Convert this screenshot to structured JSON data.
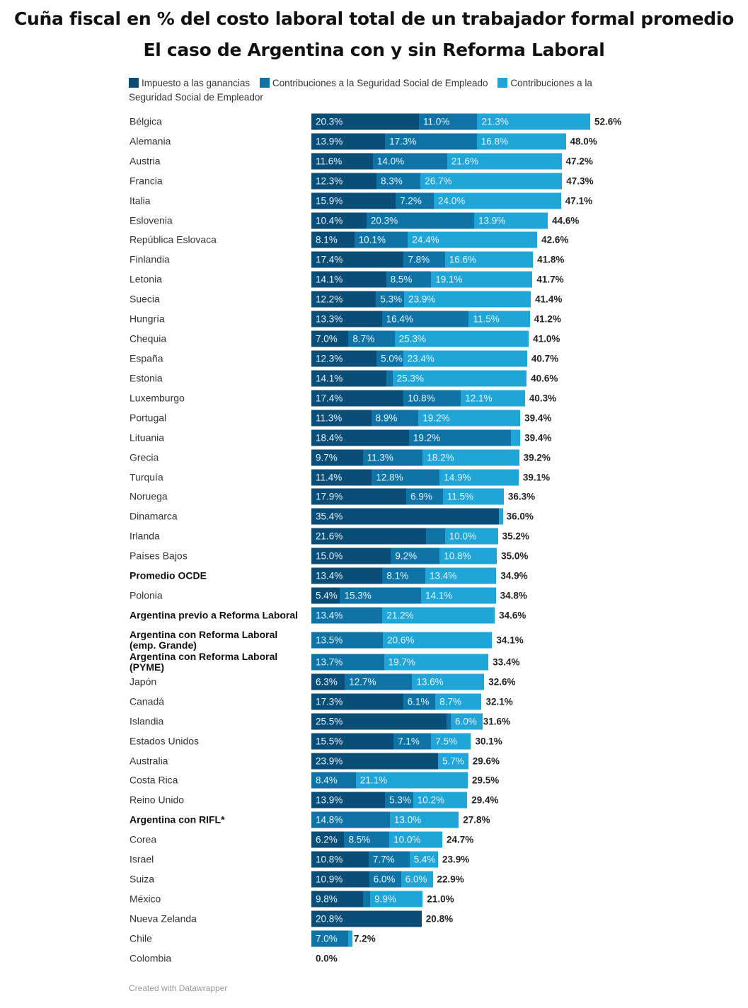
{
  "chart_data": {
    "type": "bar",
    "orientation": "horizontal",
    "stacked": true,
    "title": "Cuña fiscal en % del costo laboral total de un trabajador formal promedio",
    "subtitle": "El caso de Argentina con y sin Reforma Laboral",
    "legend_position": "top",
    "grid": false,
    "xlim": [
      0,
      52.6
    ],
    "series": [
      {
        "name": "Impuesto a las ganancias",
        "color": "#0a4d76"
      },
      {
        "name": "Contribuciones a la Seguridad Social de Empleado",
        "color": "#0f73a6"
      },
      {
        "name": "Contribuciones a la Seguridad Social de Empleador",
        "color": "#1fa5d8"
      }
    ],
    "rows": [
      {
        "label": "Bélgica",
        "values": [
          20.3,
          11.0,
          21.3
        ],
        "total": "52.6%"
      },
      {
        "label": "Alemania",
        "values": [
          13.9,
          17.3,
          16.8
        ],
        "total": "48.0%"
      },
      {
        "label": "Austria",
        "values": [
          11.6,
          14.0,
          21.6
        ],
        "total": "47.2%"
      },
      {
        "label": "Francia",
        "values": [
          12.3,
          8.3,
          26.7
        ],
        "total": "47.3%"
      },
      {
        "label": "Italia",
        "values": [
          15.9,
          7.2,
          24.0
        ],
        "total": "47.1%"
      },
      {
        "label": "Eslovenia",
        "values": [
          10.4,
          20.3,
          13.9
        ],
        "total": "44.6%"
      },
      {
        "label": "República Eslovaca",
        "values": [
          8.1,
          10.1,
          24.4
        ],
        "total": "42.6%"
      },
      {
        "label": "Finlandia",
        "values": [
          17.4,
          7.8,
          16.6
        ],
        "total": "41.8%"
      },
      {
        "label": "Letonia",
        "values": [
          14.1,
          8.5,
          19.1
        ],
        "total": "41.7%"
      },
      {
        "label": "Suecia",
        "values": [
          12.2,
          5.3,
          23.9
        ],
        "total": "41.4%"
      },
      {
        "label": "Hungría",
        "values": [
          13.3,
          16.4,
          11.5
        ],
        "total": "41.2%"
      },
      {
        "label": "Chequia",
        "values": [
          7.0,
          8.7,
          25.3
        ],
        "total": "41.0%"
      },
      {
        "label": "España",
        "values": [
          12.3,
          5.0,
          23.4
        ],
        "total": "40.7%"
      },
      {
        "label": "Estonia",
        "values": [
          14.1,
          1.2,
          25.3
        ],
        "total": "40.6%"
      },
      {
        "label": "Luxemburgo",
        "values": [
          17.4,
          10.8,
          12.1
        ],
        "total": "40.3%"
      },
      {
        "label": "Portugal",
        "values": [
          11.3,
          8.9,
          19.2
        ],
        "total": "39.4%"
      },
      {
        "label": "Lituania",
        "values": [
          18.4,
          19.2,
          1.8
        ],
        "total": "39.4%"
      },
      {
        "label": "Grecia",
        "values": [
          9.7,
          11.3,
          18.2
        ],
        "total": "39.2%"
      },
      {
        "label": "Turquía",
        "values": [
          11.4,
          12.8,
          14.9
        ],
        "total": "39.1%"
      },
      {
        "label": "Noruega",
        "values": [
          17.9,
          6.9,
          11.5
        ],
        "total": "36.3%"
      },
      {
        "label": "Dinamarca",
        "values": [
          35.4,
          0,
          0.6
        ],
        "total": "36.0%"
      },
      {
        "label": "Irlanda",
        "values": [
          21.6,
          3.6,
          10.0
        ],
        "total": "35.2%"
      },
      {
        "label": "Países Bajos",
        "values": [
          15.0,
          9.2,
          10.8
        ],
        "total": "35.0%"
      },
      {
        "label": "Promedio OCDE",
        "values": [
          13.4,
          8.1,
          13.4
        ],
        "total": "34.9%",
        "bold": true
      },
      {
        "label": "Polonia",
        "values": [
          5.4,
          15.3,
          14.1
        ],
        "total": "34.8%"
      },
      {
        "label": "Argentina previo a Reforma Laboral",
        "values": [
          0,
          13.4,
          21.2
        ],
        "total": "34.6%",
        "bold": true
      },
      {
        "label": "Argentina con Reforma Laboral (emp. Grande)",
        "values": [
          0,
          13.5,
          20.6
        ],
        "total": "34.1%",
        "bold": true,
        "tall": true
      },
      {
        "label": "Argentina con Reforma Laboral (PYME)",
        "values": [
          0,
          13.7,
          19.7
        ],
        "total": "33.4%",
        "bold": true
      },
      {
        "label": "Japón",
        "values": [
          6.3,
          12.7,
          13.6
        ],
        "total": "32.6%"
      },
      {
        "label": "Canadá",
        "values": [
          17.3,
          6.1,
          8.7
        ],
        "total": "32.1%"
      },
      {
        "label": "Islandia",
        "values": [
          25.5,
          0.1,
          6.0
        ],
        "total": "31.6%"
      },
      {
        "label": "Estados Unidos",
        "values": [
          15.5,
          7.1,
          7.5
        ],
        "total": "30.1%"
      },
      {
        "label": "Australia",
        "values": [
          23.9,
          0,
          5.7
        ],
        "total": "29.6%"
      },
      {
        "label": "Costa Rica",
        "values": [
          0,
          8.4,
          21.1
        ],
        "total": "29.5%"
      },
      {
        "label": "Reino Unido",
        "values": [
          13.9,
          5.3,
          10.2
        ],
        "total": "29.4%"
      },
      {
        "label": "Argentina con RIFL*",
        "values": [
          0,
          14.8,
          13.0
        ],
        "total": "27.8%",
        "bold": true
      },
      {
        "label": "Corea",
        "values": [
          6.2,
          8.5,
          10.0
        ],
        "total": "24.7%"
      },
      {
        "label": "Israel",
        "values": [
          10.8,
          7.7,
          5.4
        ],
        "total": "23.9%"
      },
      {
        "label": "Suiza",
        "values": [
          10.9,
          6.0,
          6.0
        ],
        "total": "22.9%"
      },
      {
        "label": "México",
        "values": [
          9.8,
          1.3,
          9.9
        ],
        "total": "21.0%"
      },
      {
        "label": "Nueva Zelanda",
        "values": [
          20.8,
          0,
          0
        ],
        "total": "20.8%"
      },
      {
        "label": "Chile",
        "values": [
          0,
          7.0,
          0.2
        ],
        "total": "7.2%"
      },
      {
        "label": "Colombia",
        "values": [
          0,
          0,
          0
        ],
        "total": "0.0%"
      }
    ]
  },
  "footer": "Created with Datawrapper"
}
